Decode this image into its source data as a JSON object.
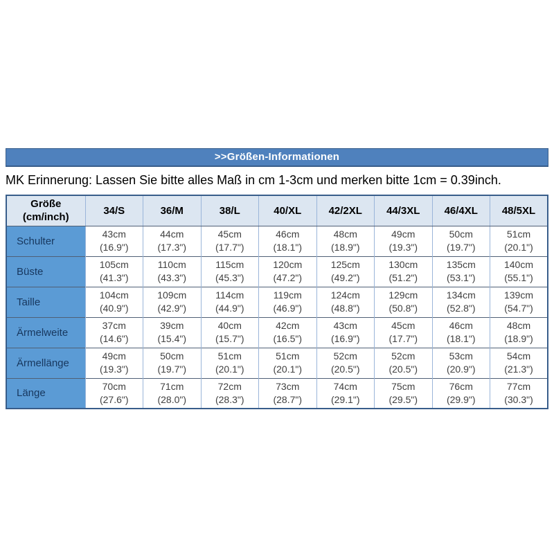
{
  "page": {
    "title_bar": ">>Größen-Informationen",
    "note": "MK Erinnerung: Lassen Sie bitte alles Maß in cm 1-3cm und merken bitte 1cm = 0.39inch."
  },
  "size_table": {
    "corner_header_line1": "Größe",
    "corner_header_line2": "(cm/inch)",
    "columns": [
      "34/S",
      "36/M",
      "38/L",
      "40/XL",
      "42/2XL",
      "44/3XL",
      "46/4XL",
      "48/5XL"
    ],
    "rows": [
      {
        "label": "Schulter",
        "cells": [
          {
            "cm": "43cm",
            "inch": "(16.9\")"
          },
          {
            "cm": "44cm",
            "inch": "(17.3\")"
          },
          {
            "cm": "45cm",
            "inch": "(17.7\")"
          },
          {
            "cm": "46cm",
            "inch": "(18.1\")"
          },
          {
            "cm": "48cm",
            "inch": "(18.9\")"
          },
          {
            "cm": "49cm",
            "inch": "(19.3\")"
          },
          {
            "cm": "50cm",
            "inch": "(19.7\")"
          },
          {
            "cm": "51cm",
            "inch": "(20.1\")"
          }
        ]
      },
      {
        "label": "Büste",
        "cells": [
          {
            "cm": "105cm",
            "inch": "(41.3\")"
          },
          {
            "cm": "110cm",
            "inch": "(43.3\")"
          },
          {
            "cm": "115cm",
            "inch": "(45.3\")"
          },
          {
            "cm": "120cm",
            "inch": "(47.2\")"
          },
          {
            "cm": "125cm",
            "inch": "(49.2\")"
          },
          {
            "cm": "130cm",
            "inch": "(51.2\")"
          },
          {
            "cm": "135cm",
            "inch": "(53.1\")"
          },
          {
            "cm": "140cm",
            "inch": "(55.1\")"
          }
        ]
      },
      {
        "label": "Taille",
        "cells": [
          {
            "cm": "104cm",
            "inch": "(40.9\")"
          },
          {
            "cm": "109cm",
            "inch": "(42.9\")"
          },
          {
            "cm": "114cm",
            "inch": "(44.9\")"
          },
          {
            "cm": "119cm",
            "inch": "(46.9\")"
          },
          {
            "cm": "124cm",
            "inch": "(48.8\")"
          },
          {
            "cm": "129cm",
            "inch": "(50.8\")"
          },
          {
            "cm": "134cm",
            "inch": "(52.8\")"
          },
          {
            "cm": "139cm",
            "inch": "(54.7\")"
          }
        ]
      },
      {
        "label": "Ärmelweite",
        "cells": [
          {
            "cm": "37cm",
            "inch": "(14.6\")"
          },
          {
            "cm": "39cm",
            "inch": "(15.4\")"
          },
          {
            "cm": "40cm",
            "inch": "(15.7\")"
          },
          {
            "cm": "42cm",
            "inch": "(16.5\")"
          },
          {
            "cm": "43cm",
            "inch": "(16.9\")"
          },
          {
            "cm": "45cm",
            "inch": "(17.7\")"
          },
          {
            "cm": "46cm",
            "inch": "(18.1\")"
          },
          {
            "cm": "48cm",
            "inch": "(18.9\")"
          }
        ]
      },
      {
        "label": "Ärmellänge",
        "cells": [
          {
            "cm": "49cm",
            "inch": "(19.3\")"
          },
          {
            "cm": "50cm",
            "inch": "(19.7\")"
          },
          {
            "cm": "51cm",
            "inch": "(20.1\")"
          },
          {
            "cm": "51cm",
            "inch": "(20.1\")"
          },
          {
            "cm": "52cm",
            "inch": "(20.5\")"
          },
          {
            "cm": "52cm",
            "inch": "(20.5\")"
          },
          {
            "cm": "53cm",
            "inch": "(20.9\")"
          },
          {
            "cm": "54cm",
            "inch": "(21.3\")"
          }
        ]
      },
      {
        "label": "Länge",
        "cells": [
          {
            "cm": "70cm",
            "inch": "(27.6\")"
          },
          {
            "cm": "71cm",
            "inch": "(28.0\")"
          },
          {
            "cm": "72cm",
            "inch": "(28.3\")"
          },
          {
            "cm": "73cm",
            "inch": "(28.7\")"
          },
          {
            "cm": "74cm",
            "inch": "(29.1\")"
          },
          {
            "cm": "75cm",
            "inch": "(29.5\")"
          },
          {
            "cm": "76cm",
            "inch": "(29.9\")"
          },
          {
            "cm": "77cm",
            "inch": "(30.3\")"
          }
        ]
      }
    ]
  },
  "colors": {
    "title_bar_bg": "#4f81bd",
    "title_bar_border": "#385d8a",
    "header_row_bg": "#dce6f1",
    "row_label_bg": "#5b9bd5",
    "row_label_text": "#17375e",
    "grid_vertical": "#9ab5d9",
    "grid_horizontal": "#4f5f75",
    "table_outer_border": "#385d8a",
    "cell_text": "#404040"
  }
}
